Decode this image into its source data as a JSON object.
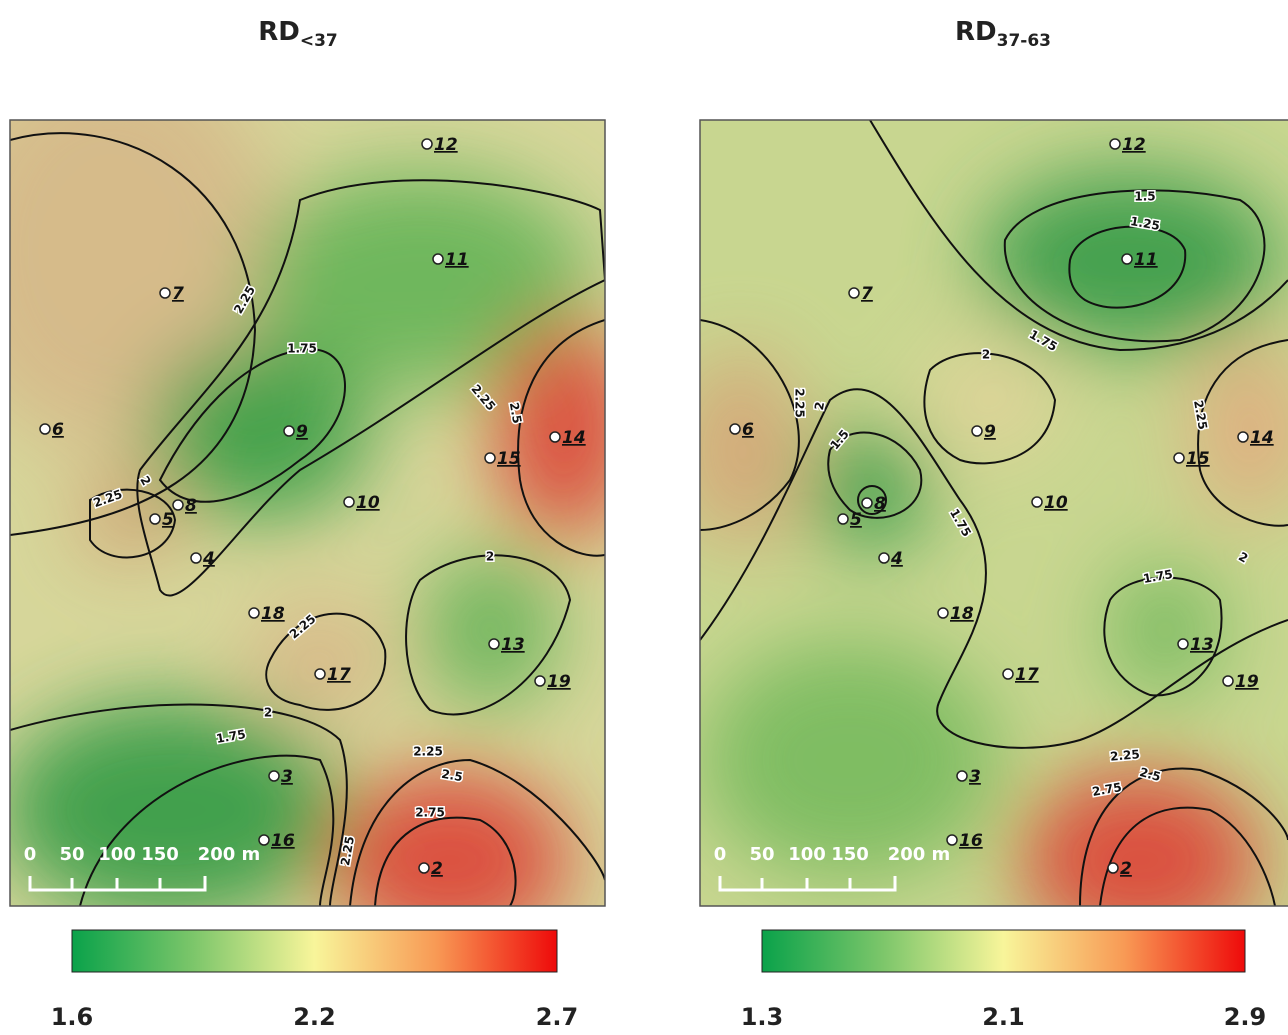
{
  "point_labels": [
    "12",
    "11",
    "7",
    "6",
    "9",
    "14",
    "15",
    "8",
    "5",
    "10",
    "4",
    "18",
    "13",
    "17",
    "19",
    "3",
    "16",
    "2"
  ],
  "panels": [
    {
      "title": {
        "main": "RD",
        "sub": "<37"
      },
      "contour_labels": [
        "2.25",
        "1.75",
        "2.25",
        "2.5",
        "2",
        "2.25",
        "2.25",
        "2",
        "2",
        "1.75",
        "2.25",
        "2.5",
        "2.75",
        "2.25"
      ],
      "scale_bar": [
        "0",
        "50",
        "100",
        "150",
        "200 m"
      ],
      "colorbar": {
        "min": 1.6,
        "mid": 2.2,
        "max": 2.7
      }
    },
    {
      "title": {
        "main": "RD",
        "sub": "37-63"
      },
      "contour_labels": [
        "1.5",
        "1.25",
        "1.75",
        "2",
        "2.25",
        "2",
        "2.25",
        "1.5",
        "1.75",
        "2",
        "1.75",
        "2.25",
        "2.5",
        "2.75"
      ],
      "scale_bar": [
        "0",
        "50",
        "100",
        "150",
        "200 m"
      ],
      "colorbar": {
        "min": 1.3,
        "mid": 2.1,
        "max": 2.9
      }
    }
  ]
}
